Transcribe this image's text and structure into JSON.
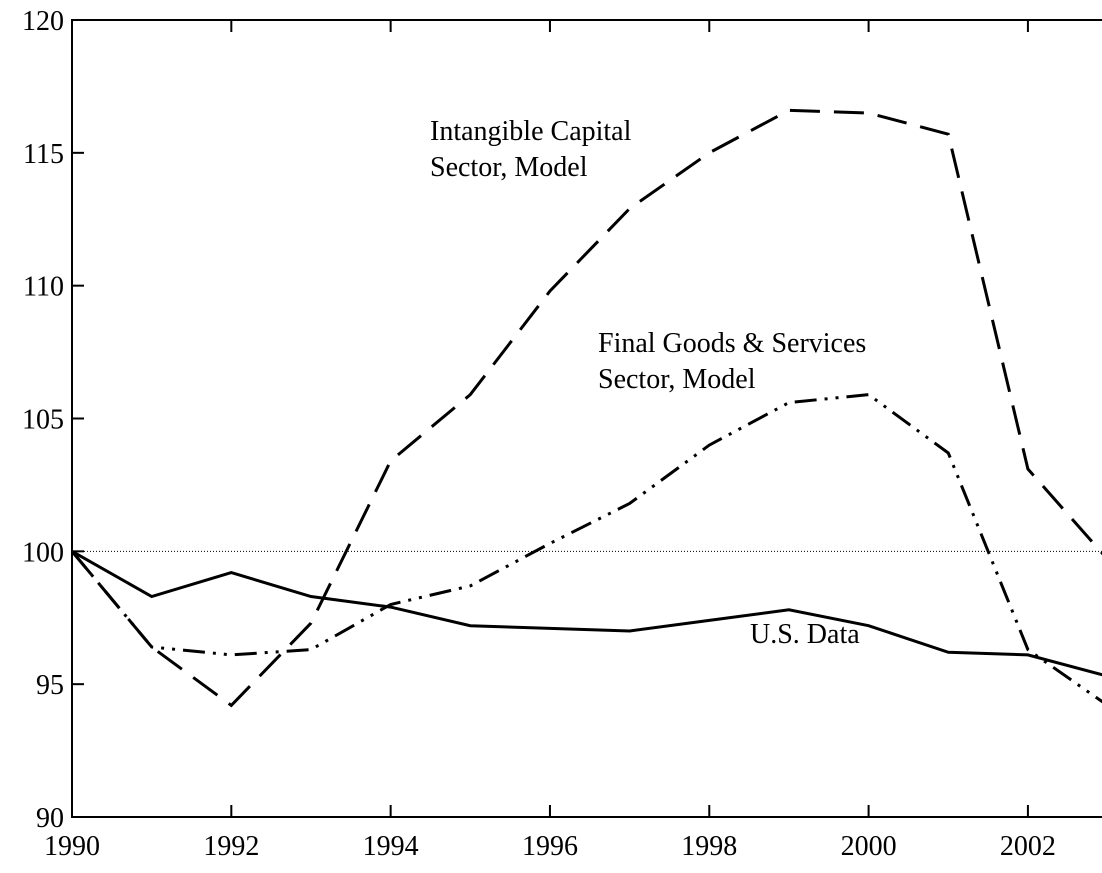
{
  "chart_data": {
    "type": "line",
    "x": [
      1990,
      1991,
      1992,
      1993,
      1994,
      1995,
      1996,
      1997,
      1998,
      1999,
      2000,
      2001,
      2002,
      2003
    ],
    "series": [
      {
        "label_lines": [
          "Intangible Capital",
          "Sector, Model"
        ],
        "color": "#000000",
        "dash": "dashed",
        "values": [
          100,
          96.4,
          94.2,
          97.3,
          103.4,
          105.9,
          109.8,
          112.9,
          115.0,
          116.6,
          116.5,
          115.7,
          103.1,
          99.7
        ]
      },
      {
        "label_lines": [
          "Final Goods & Services",
          "Sector, Model"
        ],
        "color": "#000000",
        "dash": "dash-dot-dot",
        "values": [
          100,
          96.4,
          96.1,
          96.3,
          98.0,
          98.7,
          100.3,
          101.8,
          104.0,
          105.6,
          105.9,
          103.7,
          96.3,
          94.2
        ]
      },
      {
        "label_lines": [
          "U.S. Data"
        ],
        "color": "#000000",
        "dash": "solid",
        "values": [
          100,
          98.3,
          99.2,
          98.3,
          97.9,
          97.2,
          97.1,
          97.0,
          97.4,
          97.8,
          97.2,
          96.2,
          96.1,
          95.3
        ]
      }
    ],
    "xlim": [
      1990,
      2002.93
    ],
    "xticks": [
      1990,
      1992,
      1994,
      1996,
      1998,
      2000,
      2002
    ],
    "ylim": [
      90,
      120
    ],
    "yticks": [
      90,
      95,
      100,
      105,
      110,
      115,
      120
    ],
    "reference_line": 100
  }
}
